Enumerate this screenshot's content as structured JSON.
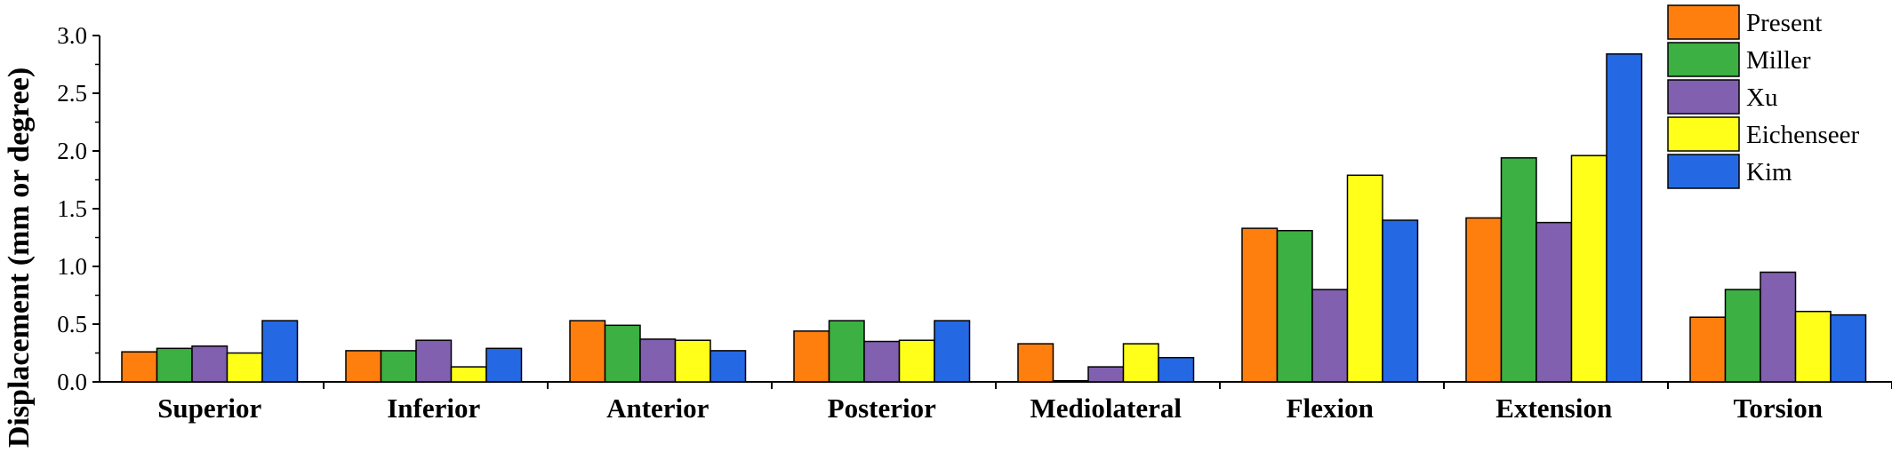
{
  "chart_data": {
    "type": "bar",
    "title": "",
    "xlabel": "",
    "ylabel": "Displacement (mm or degree)",
    "ylim": [
      0,
      3.0
    ],
    "yticks": [
      "0.0",
      "0.5",
      "1.0",
      "1.5",
      "2.0",
      "2.5",
      "3.0"
    ],
    "grid": false,
    "legend_position": "top-right",
    "categories": [
      "Superior",
      "Inferior",
      "Anterior",
      "Posterior",
      "Mediolateral",
      "Flexion",
      "Extension",
      "Torsion"
    ],
    "series": [
      {
        "name": "Present",
        "color": "#FF7F0E",
        "values": [
          0.26,
          0.27,
          0.53,
          0.44,
          0.33,
          1.33,
          1.42,
          0.56
        ]
      },
      {
        "name": "Miller",
        "color": "#3CB043",
        "values": [
          0.29,
          0.27,
          0.49,
          0.53,
          0.01,
          1.31,
          1.94,
          0.8
        ]
      },
      {
        "name": "Xu",
        "color": "#8060AF",
        "values": [
          0.31,
          0.36,
          0.37,
          0.35,
          0.13,
          0.8,
          1.38,
          0.95
        ]
      },
      {
        "name": "Eichenseer",
        "color": "#FFFF1A",
        "values": [
          0.25,
          0.13,
          0.36,
          0.36,
          0.33,
          1.79,
          1.96,
          0.61
        ]
      },
      {
        "name": "Kim",
        "color": "#2469E3",
        "values": [
          0.53,
          0.29,
          0.27,
          0.53,
          0.21,
          1.4,
          2.84,
          0.58
        ]
      }
    ]
  }
}
